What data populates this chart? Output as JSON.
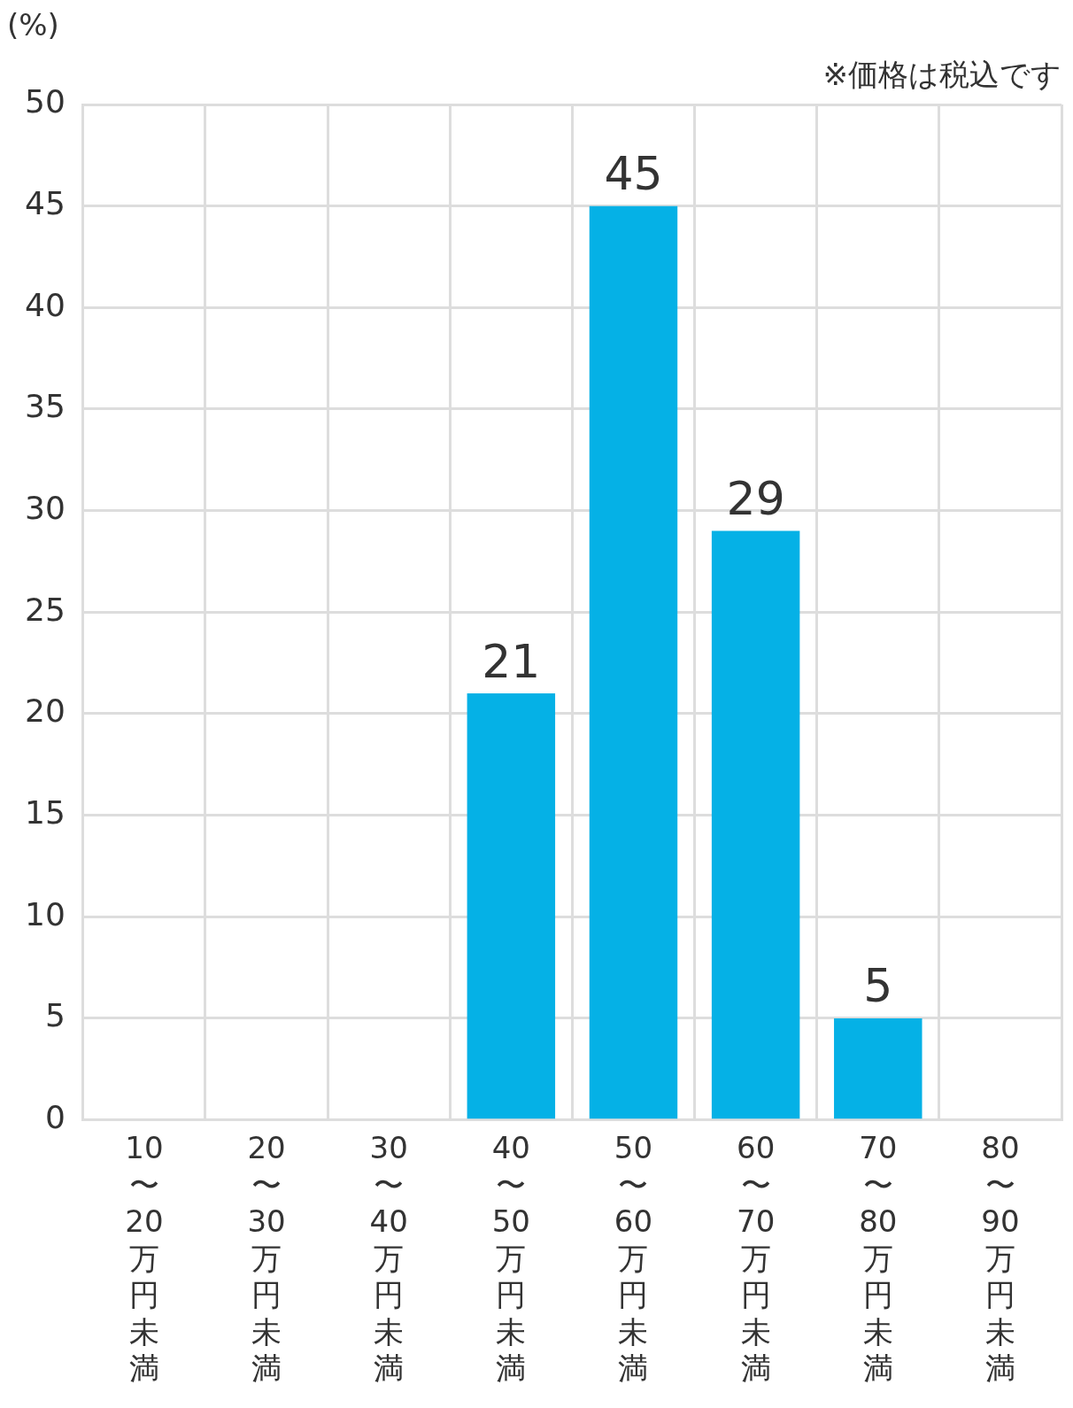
{
  "chart_data": {
    "type": "bar",
    "ylabel": "(%)",
    "annotations": [
      "※価格は税込です"
    ],
    "categories": [
      "10〜20万円未満",
      "20〜30万円未満",
      "30〜40万円未満",
      "40〜50万円未満",
      "50〜60万円未満",
      "60〜70万円未満",
      "70〜80万円未満",
      "80〜90万円未満"
    ],
    "values": [
      0,
      0,
      0,
      21,
      45,
      29,
      5,
      0
    ],
    "value_labels": [
      null,
      null,
      null,
      "21",
      "45",
      "29",
      "5",
      null
    ],
    "color": "#05b1e6",
    "ylim": [
      0,
      50
    ],
    "yticks": [
      0,
      5,
      10,
      15,
      20,
      25,
      30,
      35,
      40,
      45,
      50
    ],
    "grid": true,
    "legend": false
  }
}
